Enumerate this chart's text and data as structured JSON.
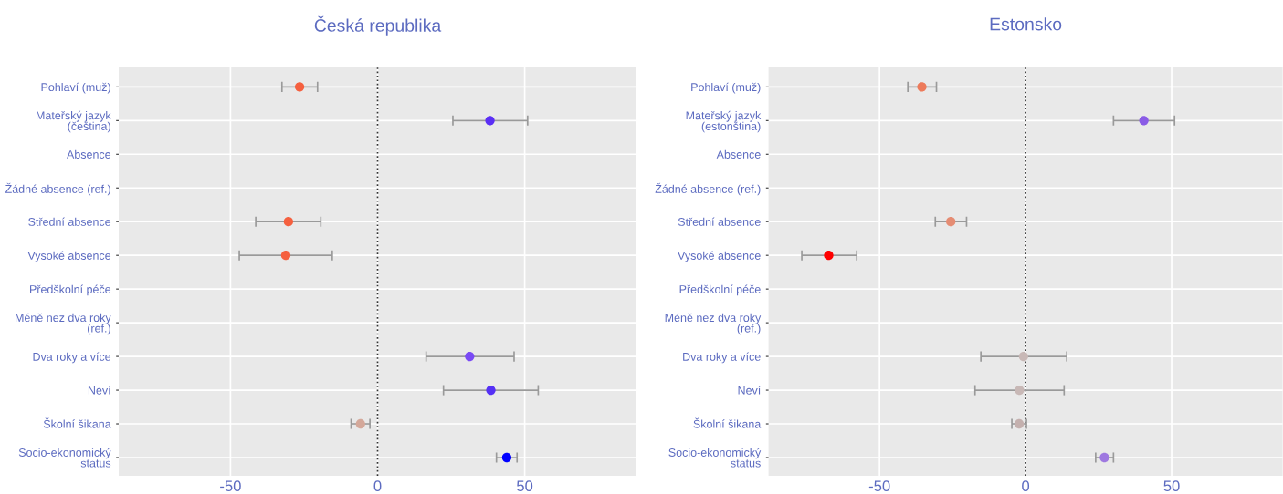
{
  "chart_data": [
    {
      "type": "scatter",
      "orientation": "horizontal",
      "title": "Česká republika",
      "categories": [
        "Pohlaví (muž)",
        "Mateřský jazyk\n(čeština)",
        "Absence",
        "Žádné absence (ref.)",
        "Střední absence",
        "Vysoké absence",
        "Předškolní péče",
        "Méně nez dva roky\n(ref.)",
        "Dva roky a více",
        "Neví",
        "Školní šikana",
        "Socio-ekonomický\nstatus"
      ],
      "values": [
        -26.5,
        38.2,
        null,
        null,
        -30.3,
        -31.2,
        null,
        null,
        31.3,
        38.5,
        -5.8,
        43.9
      ],
      "errors": [
        [
          -32.5,
          -20.4
        ],
        [
          25.6,
          51.0
        ],
        null,
        null,
        [
          -41.4,
          -19.3
        ],
        [
          -47.0,
          -15.4
        ],
        null,
        null,
        [
          16.5,
          46.4
        ],
        [
          22.4,
          54.6
        ],
        [
          -9.0,
          -2.6
        ],
        [
          40.4,
          47.4
        ]
      ],
      "colors": [
        "#f5603f",
        "#5b2ff5",
        "#999999",
        "#999999",
        "#f5603f",
        "#f5603f",
        "#999999",
        "#999999",
        "#7a4af5",
        "#5530f5",
        "#d4a89a",
        "#0000ff"
      ],
      "xlim": [
        -88,
        88
      ],
      "xticks": [
        -50,
        0,
        50
      ],
      "grid": true,
      "marker": "circle",
      "ref_lines": [
        {
          "axis": "x",
          "value": 0,
          "color": "#333333",
          "line_style": "dotted"
        }
      ]
    },
    {
      "type": "scatter",
      "orientation": "horizontal",
      "title": "Estonsko",
      "categories": [
        "Pohlaví (muž)",
        "Mateřský jazyk\n(estonština)",
        "Absence",
        "Žádné absence (ref.)",
        "Střední absence",
        "Vysoké absence",
        "Předškolní péče",
        "Méně nez dva roky\n(ref.)",
        "Dva roky a více",
        "Neví",
        "Školní šikana",
        "Socio-ekonomický\nstatus"
      ],
      "values": [
        -35.5,
        40.5,
        null,
        null,
        -25.6,
        -67.4,
        null,
        null,
        -0.7,
        -2.1,
        -2.2,
        27.0
      ],
      "errors": [
        [
          -40.3,
          -30.5
        ],
        [
          30.1,
          51.0
        ],
        null,
        null,
        [
          -30.9,
          -20.2
        ],
        [
          -76.6,
          -57.8
        ],
        null,
        null,
        [
          -15.3,
          14.1
        ],
        [
          -17.3,
          13.2
        ],
        [
          -4.7,
          0.3
        ],
        [
          24.0,
          30.1
        ]
      ],
      "colors": [
        "#ed7a5a",
        "#8a5ce6",
        "#999999",
        "#999999",
        "#e58c73",
        "#ff0000",
        "#999999",
        "#999999",
        "#c8b8b6",
        "#c8b8b6",
        "#c4b0ae",
        "#9e78e0"
      ],
      "xlim": [
        -88,
        88
      ],
      "xticks": [
        -50,
        0,
        50
      ],
      "grid": true,
      "marker": "circle",
      "ref_lines": [
        {
          "axis": "x",
          "value": 0,
          "color": "#333333",
          "line_style": "dotted"
        }
      ]
    }
  ]
}
